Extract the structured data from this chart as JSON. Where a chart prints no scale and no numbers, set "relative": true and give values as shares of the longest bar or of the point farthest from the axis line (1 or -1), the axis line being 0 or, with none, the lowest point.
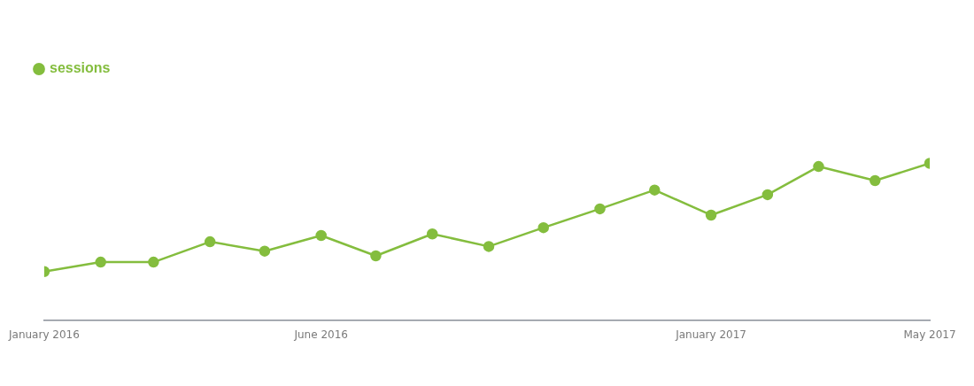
{
  "chart_data": {
    "type": "line",
    "relative": true,
    "x": [
      "2016-01",
      "2016-02",
      "2016-03",
      "2016-04",
      "2016-05",
      "2016-06",
      "2016-07",
      "2016-08",
      "2016-09",
      "2016-10",
      "2016-11",
      "2016-12",
      "2017-01",
      "2017-02",
      "2017-03",
      "2017-04",
      "2017-05"
    ],
    "series": [
      {
        "name": "sessions",
        "color": "#84bd3e",
        "values": [
          0.31,
          0.37,
          0.37,
          0.5,
          0.44,
          0.54,
          0.41,
          0.55,
          0.47,
          0.59,
          0.71,
          0.83,
          0.67,
          0.8,
          0.98,
          0.89,
          1
        ]
      }
    ],
    "xlim": [
      "2016-01",
      "2017-05"
    ],
    "xticks": [
      {
        "value": "2016-01",
        "label": "January 2016"
      },
      {
        "value": "2016-06",
        "label": "June 2016"
      },
      {
        "value": "2017-01",
        "label": "January 2017"
      },
      {
        "value": "2017-05",
        "label": "May 2017"
      }
    ],
    "legend": "top left",
    "marker": "circle",
    "line_style": "solid",
    "grid": false
  }
}
